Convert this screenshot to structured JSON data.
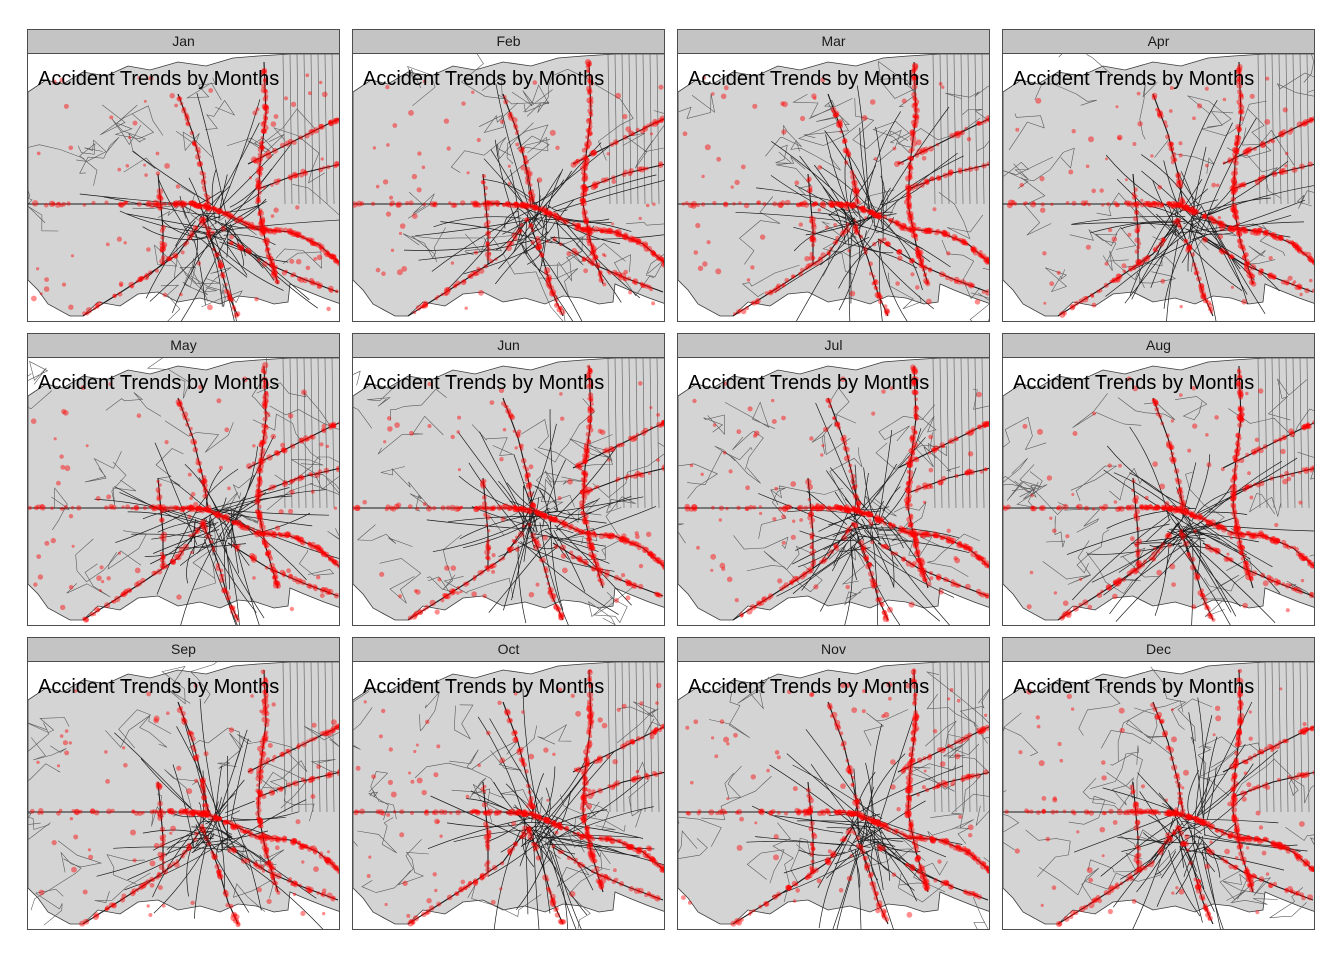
{
  "figure": {
    "panel_title": "Accident Trends by Months",
    "colors": {
      "land": "#d4d4d4",
      "boundary": "#3a3a3a",
      "road": "#1a1a1a",
      "accident": "#ff0000",
      "strip": "#c4c4c4",
      "frame": "#4d4d4d"
    },
    "icons": {
      "accident": "red-dot-marker"
    },
    "panels": [
      {
        "month": "Jan"
      },
      {
        "month": "Feb"
      },
      {
        "month": "Mar"
      },
      {
        "month": "Apr"
      },
      {
        "month": "May"
      },
      {
        "month": "Jun"
      },
      {
        "month": "Jul"
      },
      {
        "month": "Aug"
      },
      {
        "month": "Sep"
      },
      {
        "month": "Oct"
      },
      {
        "month": "Nov"
      },
      {
        "month": "Dec"
      }
    ]
  }
}
